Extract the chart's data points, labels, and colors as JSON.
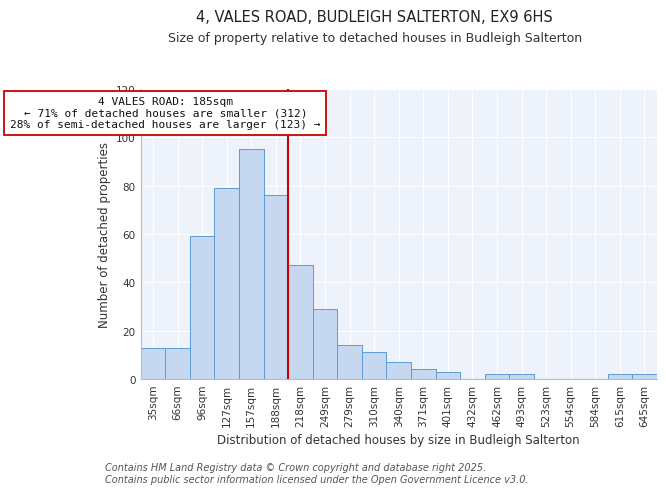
{
  "title": "4, VALES ROAD, BUDLEIGH SALTERTON, EX9 6HS",
  "subtitle": "Size of property relative to detached houses in Budleigh Salterton",
  "xlabel": "Distribution of detached houses by size in Budleigh Salterton",
  "ylabel": "Number of detached properties",
  "categories": [
    "35sqm",
    "66sqm",
    "96sqm",
    "127sqm",
    "157sqm",
    "188sqm",
    "218sqm",
    "249sqm",
    "279sqm",
    "310sqm",
    "340sqm",
    "371sqm",
    "401sqm",
    "432sqm",
    "462sqm",
    "493sqm",
    "523sqm",
    "554sqm",
    "584sqm",
    "615sqm",
    "645sqm"
  ],
  "values": [
    13,
    13,
    59,
    79,
    95,
    76,
    47,
    29,
    14,
    11,
    7,
    4,
    3,
    0,
    2,
    2,
    0,
    0,
    0,
    2,
    2
  ],
  "bar_color": "#c5d8f0",
  "bar_edge_color": "#5b9bd5",
  "vline_x_index": 5,
  "vline_color": "#cc0000",
  "annotation_line1": "4 VALES ROAD: 185sqm",
  "annotation_line2": "← 71% of detached houses are smaller (312)",
  "annotation_line3": "28% of semi-detached houses are larger (123) →",
  "annotation_box_color": "#ffffff",
  "annotation_box_edge": "#cc0000",
  "ylim": [
    0,
    120
  ],
  "yticks": [
    0,
    20,
    40,
    60,
    80,
    100,
    120
  ],
  "footer_line1": "Contains HM Land Registry data © Crown copyright and database right 2025.",
  "footer_line2": "Contains public sector information licensed under the Open Government Licence v3.0.",
  "bg_color": "#edf2fb",
  "fig_bg_color": "#ffffff",
  "title_fontsize": 10.5,
  "subtitle_fontsize": 9,
  "annotation_fontsize": 8,
  "footer_fontsize": 7,
  "tick_fontsize": 7.5,
  "axis_label_fontsize": 8.5
}
